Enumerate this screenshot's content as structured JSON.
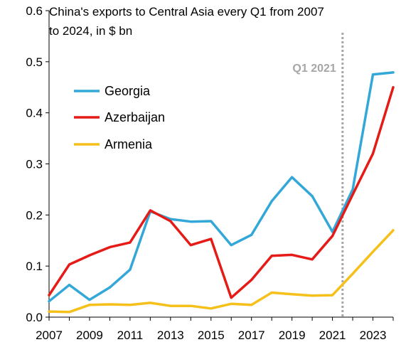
{
  "chart_data": {
    "type": "line",
    "title_line1": "China's exports to Central Asia every Q1 from 2007",
    "title_line2": "to 2024, in $ bn",
    "x": [
      2007,
      2008,
      2009,
      2010,
      2011,
      2012,
      2013,
      2014,
      2015,
      2016,
      2017,
      2018,
      2019,
      2020,
      2021,
      2022,
      2023,
      2024
    ],
    "x_tick_labels": [
      "2007",
      "2009",
      "2011",
      "2013",
      "2015",
      "2017",
      "2019",
      "2021",
      "2023"
    ],
    "x_tick_values": [
      2007,
      2009,
      2011,
      2013,
      2015,
      2017,
      2019,
      2021,
      2023
    ],
    "y_tick_labels": [
      "0.0",
      "0.1",
      "0.2",
      "0.3",
      "0.4",
      "0.5",
      "0.6"
    ],
    "y_tick_values": [
      0,
      0.1,
      0.2,
      0.3,
      0.4,
      0.5,
      0.6
    ],
    "xlim": [
      2007,
      2024
    ],
    "ylim": [
      0,
      0.6
    ],
    "grid": false,
    "legend_position": "left",
    "series": [
      {
        "name": "Georgia",
        "color": "#33a8d8",
        "values": [
          0.031,
          0.063,
          0.034,
          0.058,
          0.093,
          0.207,
          0.192,
          0.187,
          0.188,
          0.141,
          0.161,
          0.227,
          0.274,
          0.237,
          0.167,
          0.25,
          0.475,
          0.479
        ]
      },
      {
        "name": "Azerbaijan",
        "color": "#e41b17",
        "values": [
          0.043,
          0.103,
          0.121,
          0.137,
          0.146,
          0.209,
          0.188,
          0.141,
          0.153,
          0.038,
          0.073,
          0.12,
          0.122,
          0.113,
          0.159,
          0.24,
          0.32,
          0.45
        ]
      },
      {
        "name": "Armenia",
        "color": "#f5c01a",
        "values": [
          0.011,
          0.01,
          0.024,
          0.025,
          0.024,
          0.028,
          0.022,
          0.022,
          0.017,
          0.026,
          0.024,
          0.048,
          0.045,
          0.042,
          0.043,
          0.085,
          0.128,
          0.17
        ]
      }
    ],
    "annotation": {
      "label": "Q1 2021",
      "x": 2021.5,
      "color": "#a6a6a6"
    }
  }
}
